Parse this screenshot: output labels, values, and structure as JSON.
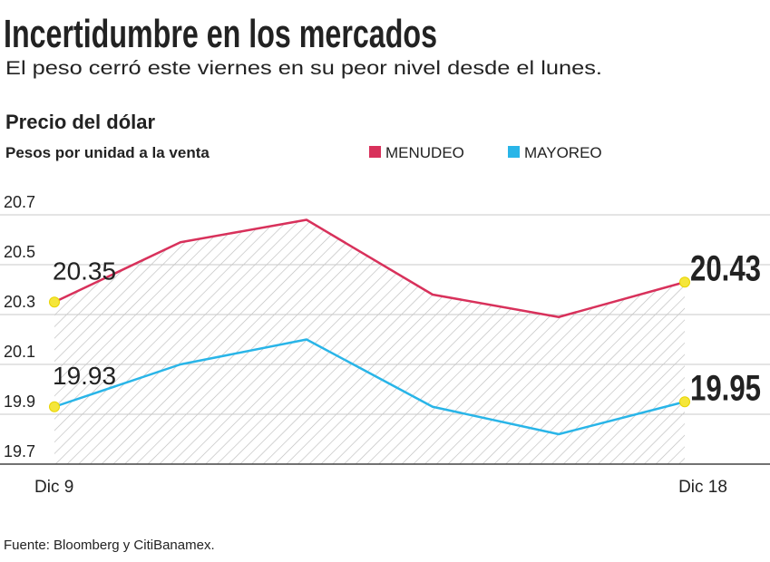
{
  "chart_data": {
    "type": "line",
    "title": "Incertidumbre en los mercados",
    "subtitle": "El peso cerró este viernes en su peor nivel desde el lunes.",
    "chart_title": "Precio del dólar",
    "y_label": "Pesos por unidad a la venta",
    "categories": [
      "Dic 9",
      null,
      null,
      null,
      null,
      "Dic 18"
    ],
    "series": [
      {
        "name": "MENUDEO",
        "color": "#d8315b",
        "values": [
          20.35,
          20.59,
          20.68,
          20.38,
          20.29,
          20.43
        ]
      },
      {
        "name": "MAYOREO",
        "color": "#29b5e8",
        "values": [
          19.93,
          20.1,
          20.2,
          19.93,
          19.82,
          19.95
        ]
      }
    ],
    "ylim": [
      19.7,
      20.7
    ],
    "yticks": [
      19.7,
      19.9,
      20.1,
      20.3,
      20.5,
      20.7
    ],
    "grid": true,
    "source": "Fuente: Bloomberg y CitiBanamex."
  }
}
